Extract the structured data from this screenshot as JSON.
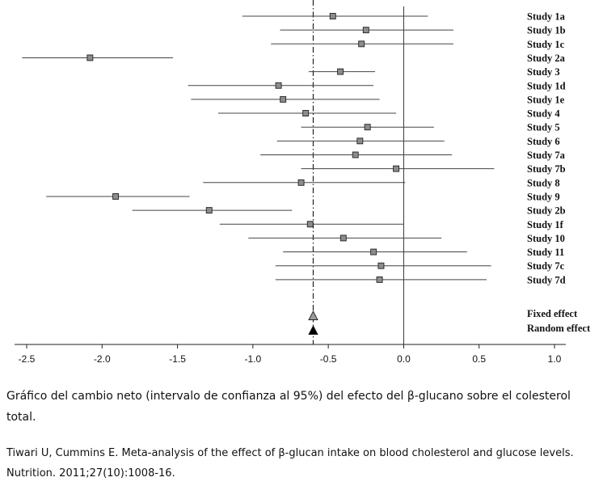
{
  "chart_data": {
    "type": "forest",
    "xlim": [
      -2.5,
      1.0
    ],
    "xticks": [
      "-2.5",
      "-2.0",
      "-1.5",
      "-1.0",
      "-0.5",
      "0.0",
      "0.5",
      "1.0"
    ],
    "xtick_values": [
      -2.5,
      -2.0,
      -1.5,
      -1.0,
      -0.5,
      0.0,
      0.5,
      1.0
    ],
    "pooled_estimate": -0.6,
    "studies": [
      {
        "label": "Study 1a",
        "mean": -0.47,
        "lower": -1.07,
        "upper": 0.16
      },
      {
        "label": "Study 1b",
        "mean": -0.25,
        "lower": -0.82,
        "upper": 0.33
      },
      {
        "label": "Study 1c",
        "mean": -0.28,
        "lower": -0.88,
        "upper": 0.33
      },
      {
        "label": "Study 2a",
        "mean": -2.08,
        "lower": -2.53,
        "upper": -1.53
      },
      {
        "label": "Study 3",
        "mean": -0.42,
        "lower": -0.63,
        "upper": -0.19
      },
      {
        "label": "Study 1d",
        "mean": -0.83,
        "lower": -1.43,
        "upper": -0.2
      },
      {
        "label": "Study 1e",
        "mean": -0.8,
        "lower": -1.41,
        "upper": -0.16
      },
      {
        "label": "Study 4",
        "mean": -0.65,
        "lower": -1.23,
        "upper": -0.05
      },
      {
        "label": "Study 5",
        "mean": -0.24,
        "lower": -0.68,
        "upper": 0.2
      },
      {
        "label": "Study 6",
        "mean": -0.29,
        "lower": -0.84,
        "upper": 0.27
      },
      {
        "label": "Study 7a",
        "mean": -0.32,
        "lower": -0.95,
        "upper": 0.32
      },
      {
        "label": "Study 7b",
        "mean": -0.05,
        "lower": -0.68,
        "upper": 0.6
      },
      {
        "label": "Study 8",
        "mean": -0.68,
        "lower": -1.33,
        "upper": 0.01
      },
      {
        "label": "Study 9",
        "mean": -1.91,
        "lower": -2.37,
        "upper": -1.42
      },
      {
        "label": "Study 2b",
        "mean": -1.29,
        "lower": -1.8,
        "upper": -0.74
      },
      {
        "label": "Study 1f",
        "mean": -0.62,
        "lower": -1.22,
        "upper": 0.0
      },
      {
        "label": "Study 10",
        "mean": -0.4,
        "lower": -1.03,
        "upper": 0.25
      },
      {
        "label": "Study 11",
        "mean": -0.2,
        "lower": -0.8,
        "upper": 0.42
      },
      {
        "label": "Study 7c",
        "mean": -0.15,
        "lower": -0.85,
        "upper": 0.58
      },
      {
        "label": "Study 7d",
        "mean": -0.16,
        "lower": -0.85,
        "upper": 0.55
      }
    ],
    "summary": [
      {
        "label": "Fixed effect",
        "mean": -0.6,
        "marker": "triangle-open",
        "color": "#9a9a9a"
      },
      {
        "label": "Random effect",
        "mean": -0.6,
        "marker": "triangle-filled",
        "color": "#000000"
      }
    ],
    "marker_color": "#8c8c8c"
  },
  "caption": {
    "main": "Gráfico del cambio neto (intervalo de confianza al 95%) del efecto del β-glucano  sobre el colesterol total.",
    "citation": "Tiwari U, Cummins E. Meta-analysis of the effect of β-glucan intake on blood cholesterol and glucose levels. Nutrition. 2011;27(10):1008-16."
  }
}
